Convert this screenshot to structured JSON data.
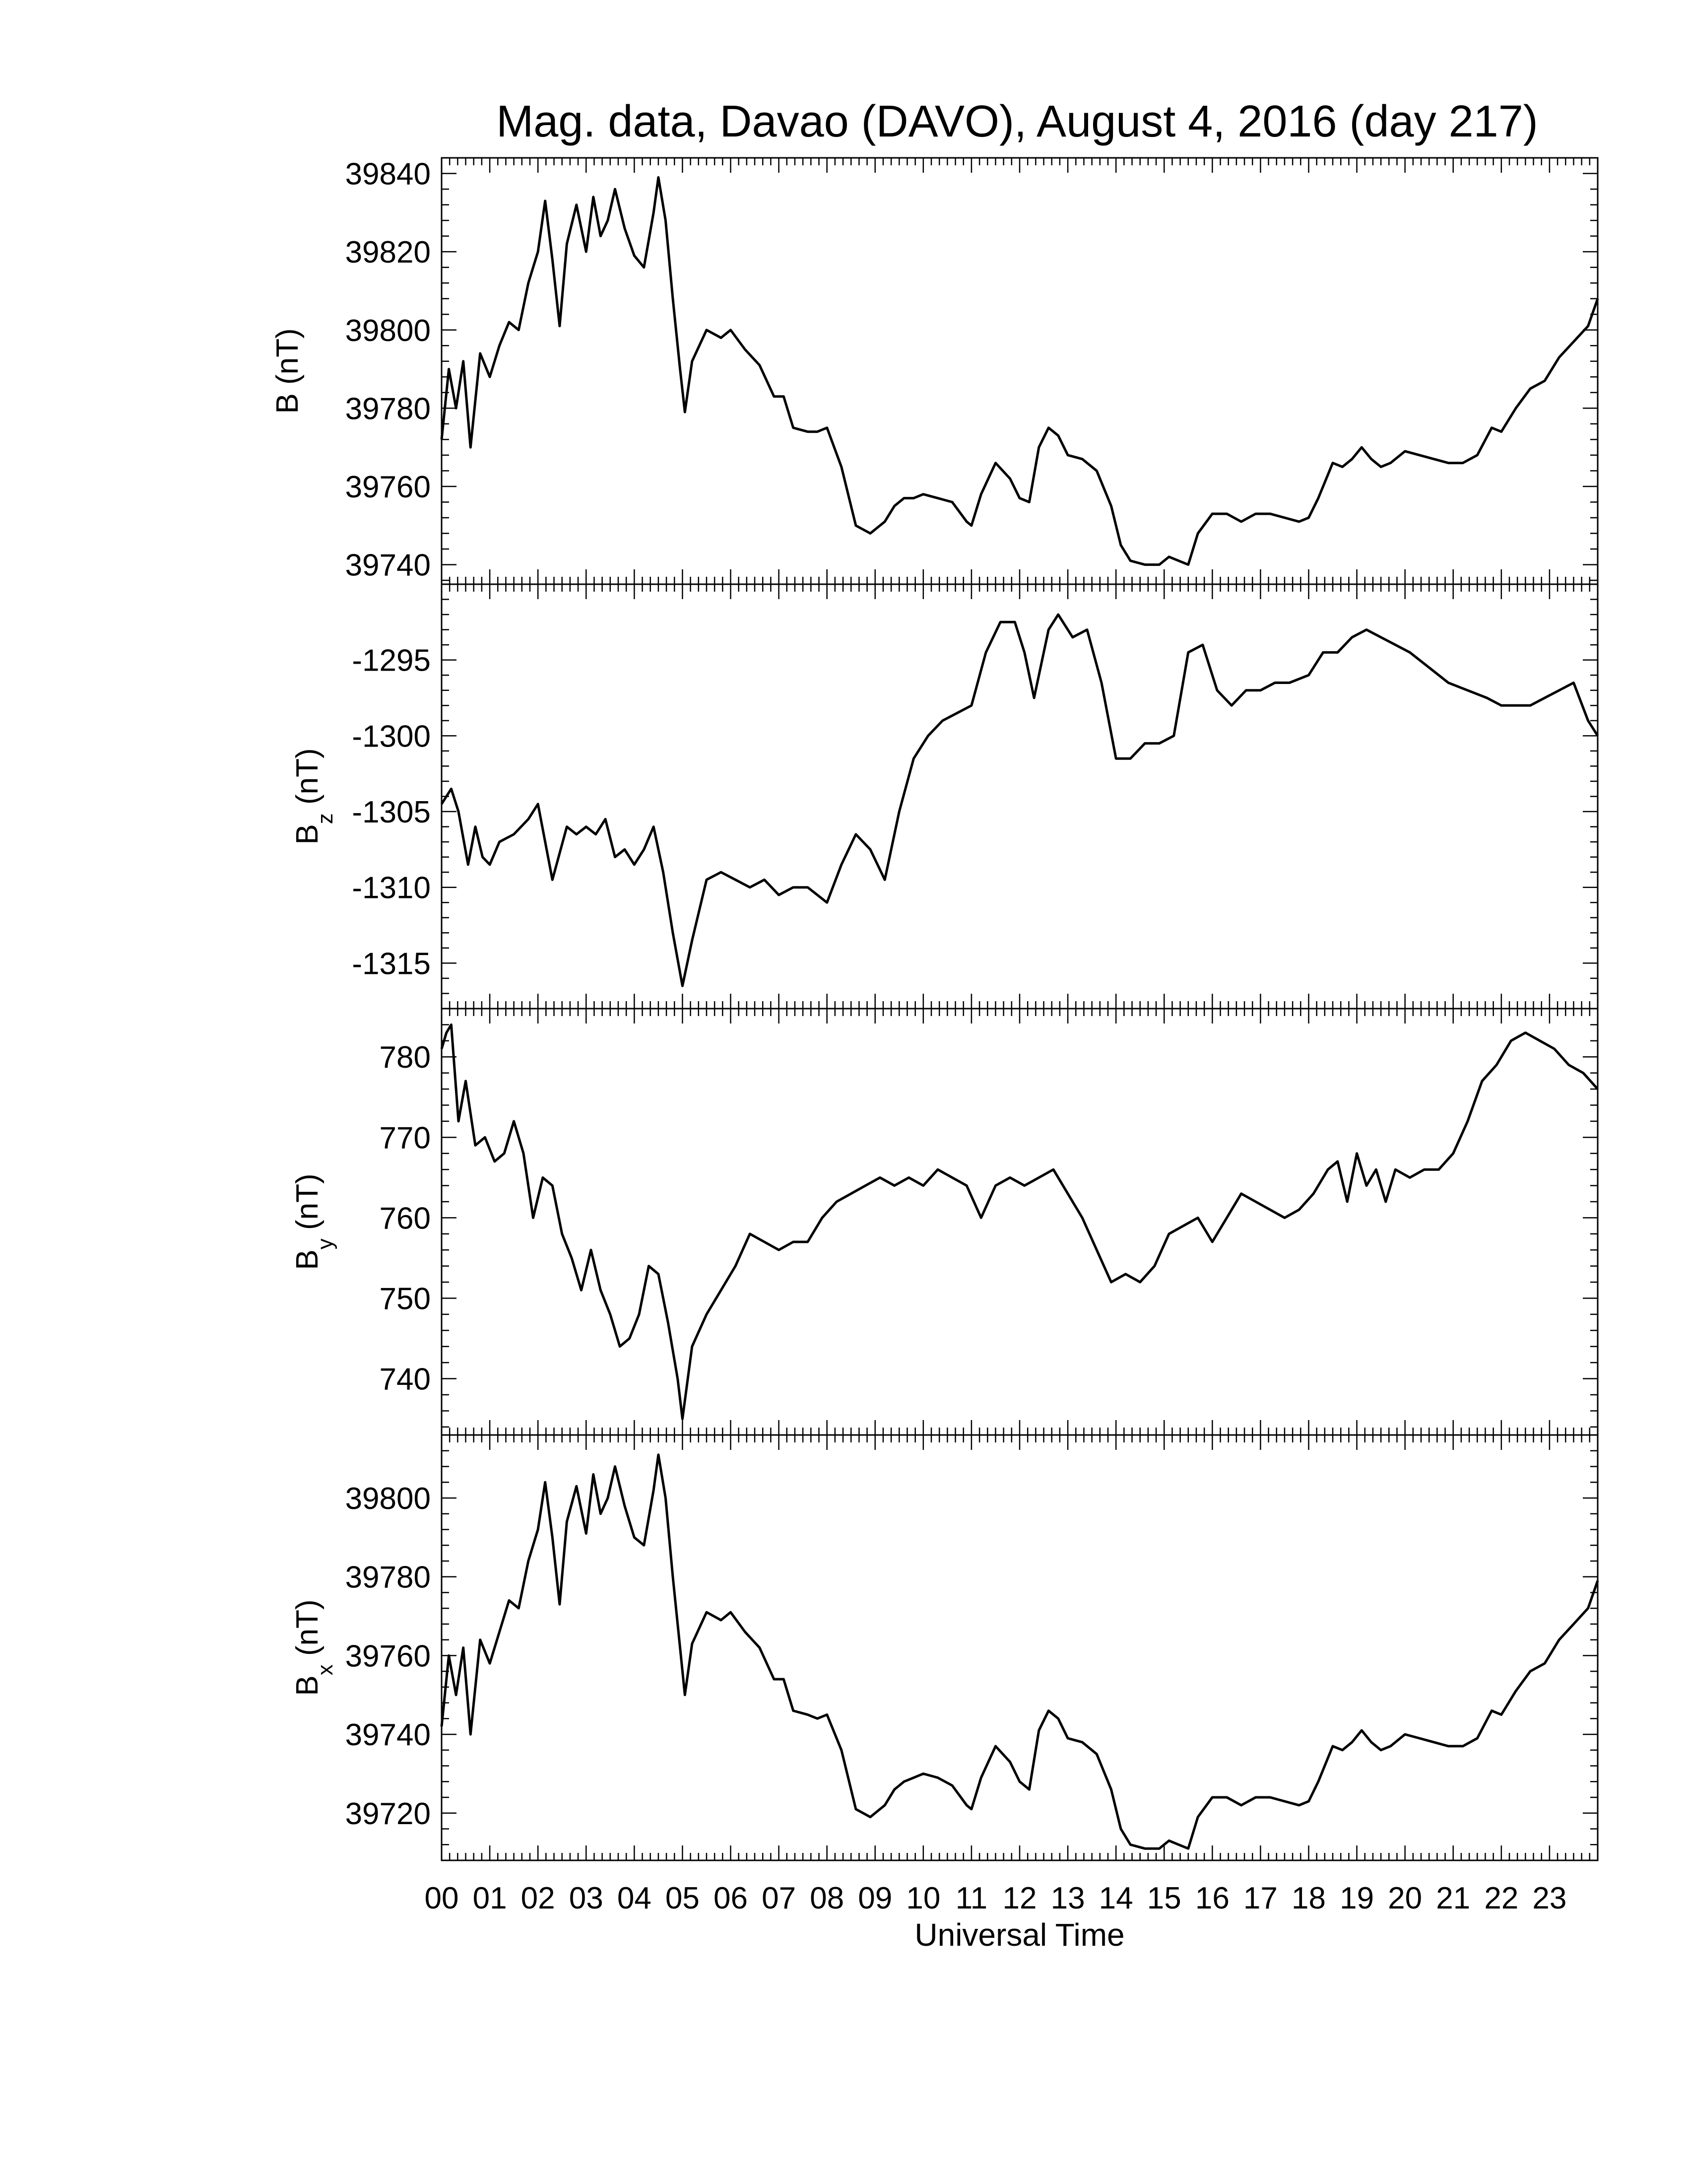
{
  "title": "Mag. data, Davao (DAVO), August 4, 2016 (day 217)",
  "xlabel": "Universal Time",
  "colors": {
    "trace": "#000000",
    "axis": "#000000",
    "background": "#ffffff"
  },
  "chart_data": [
    {
      "type": "line",
      "ylabel_main": "B",
      "ylabel_sub": "",
      "ylabel_unit": " (nT)",
      "ylim": [
        39735,
        39844
      ],
      "yticks": [
        39740,
        39760,
        39780,
        39800,
        39820,
        39840
      ],
      "xlim": [
        0,
        24
      ],
      "xticks": [
        "00",
        "01",
        "02",
        "03",
        "04",
        "05",
        "06",
        "07",
        "08",
        "09",
        "10",
        "11",
        "12",
        "13",
        "14",
        "15",
        "16",
        "17",
        "18",
        "19",
        "20",
        "21",
        "22",
        "23"
      ],
      "series": [
        {
          "x": [
            0,
            0.15,
            0.3,
            0.45,
            0.6,
            0.8,
            1.0,
            1.2,
            1.4,
            1.6,
            1.8,
            2.0,
            2.15,
            2.3,
            2.45,
            2.6,
            2.8,
            3.0,
            3.15,
            3.3,
            3.45,
            3.6,
            3.8,
            4.0,
            4.2,
            4.4,
            4.5,
            4.65,
            4.8,
            4.95,
            5.05,
            5.2,
            5.5,
            5.8,
            6.0,
            6.3,
            6.6,
            6.9,
            7.1,
            7.3,
            7.6,
            7.8,
            8.0,
            8.3,
            8.6,
            8.9,
            9.2,
            9.4,
            9.6,
            9.8,
            10.0,
            10.3,
            10.6,
            10.9,
            11.0,
            11.2,
            11.5,
            11.8,
            12.0,
            12.2,
            12.4,
            12.6,
            12.8,
            13.0,
            13.3,
            13.6,
            13.9,
            14.1,
            14.3,
            14.6,
            14.9,
            15.1,
            15.3,
            15.5,
            15.7,
            16.0,
            16.3,
            16.6,
            16.9,
            17.2,
            17.5,
            17.8,
            18.0,
            18.2,
            18.5,
            18.7,
            18.9,
            19.1,
            19.3,
            19.5,
            19.7,
            20.0,
            20.3,
            20.6,
            20.9,
            21.2,
            21.5,
            21.8,
            22.0,
            22.3,
            22.6,
            22.9,
            23.2,
            23.5,
            23.8,
            24.0
          ],
          "y": [
            39772,
            39790,
            39780,
            39792,
            39770,
            39794,
            39788,
            39796,
            39802,
            39800,
            39812,
            39820,
            39833,
            39818,
            39801,
            39822,
            39832,
            39820,
            39834,
            39824,
            39828,
            39836,
            39826,
            39819,
            39816,
            39830,
            39839,
            39828,
            39808,
            39790,
            39779,
            39792,
            39800,
            39798,
            39800,
            39795,
            39791,
            39783,
            39783,
            39775,
            39774,
            39774,
            39775,
            39765,
            39750,
            39748,
            39751,
            39755,
            39757,
            39757,
            39758,
            39757,
            39756,
            39751,
            39750,
            39758,
            39766,
            39762,
            39757,
            39756,
            39770,
            39775,
            39773,
            39768,
            39767,
            39764,
            39755,
            39745,
            39741,
            39740,
            39740,
            39742,
            39741,
            39740,
            39748,
            39753,
            39753,
            39751,
            39753,
            39753,
            39752,
            39751,
            39752,
            39757,
            39766,
            39765,
            39767,
            39770,
            39767,
            39765,
            39766,
            39769,
            39768,
            39767,
            39766,
            39766,
            39768,
            39775,
            39774,
            39780,
            39785,
            39787,
            39793,
            39797,
            39801,
            39808
          ]
        }
      ]
    },
    {
      "type": "line",
      "ylabel_main": "B",
      "ylabel_sub": "z",
      "ylabel_unit": " (nT)",
      "ylim": [
        -1318,
        -1290
      ],
      "yticks": [
        -1295,
        -1300,
        -1305,
        -1310,
        -1315
      ],
      "xlim": [
        0,
        24
      ],
      "xticks": [
        "00",
        "01",
        "02",
        "03",
        "04",
        "05",
        "06",
        "07",
        "08",
        "09",
        "10",
        "11",
        "12",
        "13",
        "14",
        "15",
        "16",
        "17",
        "18",
        "19",
        "20",
        "21",
        "22",
        "23"
      ],
      "series": [
        {
          "x": [
            0,
            0.2,
            0.35,
            0.55,
            0.7,
            0.85,
            1.0,
            1.2,
            1.5,
            1.8,
            2.0,
            2.3,
            2.6,
            2.8,
            3.0,
            3.2,
            3.4,
            3.6,
            3.8,
            4.0,
            4.2,
            4.4,
            4.6,
            4.8,
            5.0,
            5.2,
            5.5,
            5.8,
            6.1,
            6.4,
            6.7,
            7.0,
            7.3,
            7.6,
            8.0,
            8.3,
            8.6,
            8.9,
            9.2,
            9.5,
            9.8,
            10.1,
            10.4,
            10.7,
            11.0,
            11.3,
            11.6,
            11.9,
            12.1,
            12.3,
            12.6,
            12.8,
            13.1,
            13.4,
            13.7,
            14.0,
            14.3,
            14.6,
            14.9,
            15.2,
            15.5,
            15.8,
            16.1,
            16.4,
            16.7,
            17.0,
            17.3,
            17.6,
            18.0,
            18.3,
            18.6,
            18.9,
            19.2,
            19.5,
            19.8,
            20.1,
            20.5,
            20.9,
            21.3,
            21.7,
            22.0,
            22.3,
            22.6,
            22.9,
            23.2,
            23.5,
            23.8,
            24.0
          ],
          "y": [
            -1304.5,
            -1303.5,
            -1305,
            -1308.5,
            -1306,
            -1308,
            -1308.5,
            -1307,
            -1306.5,
            -1305.5,
            -1304.5,
            -1309.5,
            -1306,
            -1306.5,
            -1306,
            -1306.5,
            -1305.5,
            -1308,
            -1307.5,
            -1308.5,
            -1307.5,
            -1306,
            -1309,
            -1313,
            -1316.5,
            -1313.5,
            -1309.5,
            -1309,
            -1309.5,
            -1310,
            -1309.5,
            -1310.5,
            -1310,
            -1310,
            -1311,
            -1308.5,
            -1306.5,
            -1307.5,
            -1309.5,
            -1305,
            -1301.5,
            -1300,
            -1299,
            -1298.5,
            -1298,
            -1294.5,
            -1292.5,
            -1292.5,
            -1294.5,
            -1297.5,
            -1293,
            -1292,
            -1293.5,
            -1293,
            -1296.5,
            -1301.5,
            -1301.5,
            -1300.5,
            -1300.5,
            -1300,
            -1294.5,
            -1294,
            -1297,
            -1298,
            -1297,
            -1297,
            -1296.5,
            -1296.5,
            -1296,
            -1294.5,
            -1294.5,
            -1293.5,
            -1293,
            -1293.5,
            -1294,
            -1294.5,
            -1295.5,
            -1296.5,
            -1297,
            -1297.5,
            -1298,
            -1298,
            -1298,
            -1297.5,
            -1297,
            -1296.5,
            -1299,
            -1300
          ]
        }
      ]
    },
    {
      "type": "line",
      "ylabel_main": "B",
      "ylabel_sub": "y",
      "ylabel_unit": " (nT)",
      "ylim": [
        733,
        786
      ],
      "yticks": [
        740,
        750,
        760,
        770,
        780
      ],
      "xlim": [
        0,
        24
      ],
      "xticks": [
        "00",
        "01",
        "02",
        "03",
        "04",
        "05",
        "06",
        "07",
        "08",
        "09",
        "10",
        "11",
        "12",
        "13",
        "14",
        "15",
        "16",
        "17",
        "18",
        "19",
        "20",
        "21",
        "22",
        "23"
      ],
      "series": [
        {
          "x": [
            0,
            0.1,
            0.2,
            0.35,
            0.5,
            0.7,
            0.9,
            1.1,
            1.3,
            1.5,
            1.7,
            1.9,
            2.1,
            2.3,
            2.5,
            2.7,
            2.9,
            3.1,
            3.3,
            3.5,
            3.7,
            3.9,
            4.1,
            4.3,
            4.5,
            4.7,
            4.9,
            5.0,
            5.2,
            5.5,
            5.8,
            6.1,
            6.4,
            6.7,
            7.0,
            7.3,
            7.6,
            7.9,
            8.2,
            8.5,
            8.8,
            9.1,
            9.4,
            9.7,
            10.0,
            10.3,
            10.6,
            10.9,
            11.2,
            11.5,
            11.8,
            12.1,
            12.4,
            12.7,
            13.0,
            13.3,
            13.6,
            13.9,
            14.2,
            14.5,
            14.8,
            15.1,
            15.4,
            15.7,
            16.0,
            16.3,
            16.6,
            16.9,
            17.2,
            17.5,
            17.8,
            18.1,
            18.4,
            18.6,
            18.8,
            19.0,
            19.2,
            19.4,
            19.6,
            19.8,
            20.1,
            20.4,
            20.7,
            21.0,
            21.3,
            21.6,
            21.9,
            22.2,
            22.5,
            22.8,
            23.1,
            23.4,
            23.7,
            24.0
          ],
          "y": [
            781,
            783,
            784,
            772,
            777,
            769,
            770,
            767,
            768,
            772,
            768,
            760,
            765,
            764,
            758,
            755,
            751,
            756,
            751,
            748,
            744,
            745,
            748,
            754,
            753,
            747,
            740,
            735,
            744,
            748,
            751,
            754,
            758,
            757,
            756,
            757,
            757,
            760,
            762,
            763,
            764,
            765,
            764,
            765,
            764,
            766,
            765,
            764,
            760,
            764,
            765,
            764,
            765,
            766,
            763,
            760,
            756,
            752,
            753,
            752,
            754,
            758,
            759,
            760,
            757,
            760,
            763,
            762,
            761,
            760,
            761,
            763,
            766,
            767,
            762,
            768,
            764,
            766,
            762,
            766,
            765,
            766,
            766,
            768,
            772,
            777,
            779,
            782,
            783,
            782,
            781,
            779,
            778,
            776
          ]
        }
      ]
    },
    {
      "type": "line",
      "ylabel_main": "B",
      "ylabel_sub": "x",
      "ylabel_unit": " (nT)",
      "ylim": [
        39708,
        39816
      ],
      "yticks": [
        39720,
        39740,
        39760,
        39780,
        39800
      ],
      "xlim": [
        0,
        24
      ],
      "xticks": [
        "00",
        "01",
        "02",
        "03",
        "04",
        "05",
        "06",
        "07",
        "08",
        "09",
        "10",
        "11",
        "12",
        "13",
        "14",
        "15",
        "16",
        "17",
        "18",
        "19",
        "20",
        "21",
        "22",
        "23"
      ],
      "series": [
        {
          "x": [
            0,
            0.15,
            0.3,
            0.45,
            0.6,
            0.8,
            1.0,
            1.2,
            1.4,
            1.6,
            1.8,
            2.0,
            2.15,
            2.3,
            2.45,
            2.6,
            2.8,
            3.0,
            3.15,
            3.3,
            3.45,
            3.6,
            3.8,
            4.0,
            4.2,
            4.4,
            4.5,
            4.65,
            4.8,
            4.95,
            5.05,
            5.2,
            5.5,
            5.8,
            6.0,
            6.3,
            6.6,
            6.9,
            7.1,
            7.3,
            7.6,
            7.8,
            8.0,
            8.3,
            8.6,
            8.9,
            9.2,
            9.4,
            9.6,
            9.8,
            10.0,
            10.3,
            10.6,
            10.9,
            11.0,
            11.2,
            11.5,
            11.8,
            12.0,
            12.2,
            12.4,
            12.6,
            12.8,
            13.0,
            13.3,
            13.6,
            13.9,
            14.1,
            14.3,
            14.6,
            14.9,
            15.1,
            15.3,
            15.5,
            15.7,
            16.0,
            16.3,
            16.6,
            16.9,
            17.2,
            17.5,
            17.8,
            18.0,
            18.2,
            18.5,
            18.7,
            18.9,
            19.1,
            19.3,
            19.5,
            19.7,
            20.0,
            20.3,
            20.6,
            20.9,
            21.2,
            21.5,
            21.8,
            22.0,
            22.3,
            22.6,
            22.9,
            23.2,
            23.5,
            23.8,
            24.0
          ],
          "y": [
            39742,
            39760,
            39750,
            39762,
            39740,
            39764,
            39758,
            39766,
            39774,
            39772,
            39784,
            39792,
            39804,
            39790,
            39773,
            39794,
            39803,
            39791,
            39806,
            39796,
            39800,
            39808,
            39798,
            39790,
            39788,
            39802,
            39811,
            39800,
            39780,
            39762,
            39750,
            39763,
            39771,
            39769,
            39771,
            39766,
            39762,
            39754,
            39754,
            39746,
            39745,
            39744,
            39745,
            39736,
            39721,
            39719,
            39722,
            39726,
            39728,
            39729,
            39730,
            39729,
            39727,
            39722,
            39721,
            39729,
            39737,
            39733,
            39728,
            39726,
            39741,
            39746,
            39744,
            39739,
            39738,
            39735,
            39726,
            39716,
            39712,
            39711,
            39711,
            39713,
            39712,
            39711,
            39719,
            39724,
            39724,
            39722,
            39724,
            39724,
            39723,
            39722,
            39723,
            39728,
            39737,
            39736,
            39738,
            39741,
            39738,
            39736,
            39737,
            39740,
            39739,
            39738,
            39737,
            39737,
            39739,
            39746,
            39745,
            39751,
            39756,
            39758,
            39764,
            39768,
            39772,
            39779
          ]
        }
      ]
    }
  ]
}
